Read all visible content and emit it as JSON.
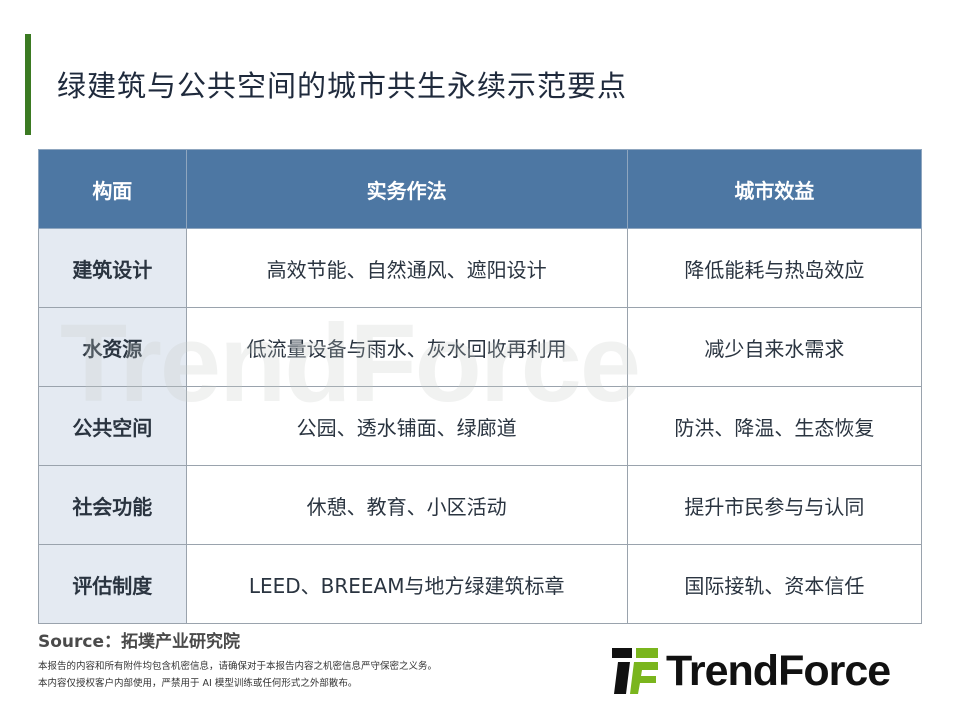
{
  "title": "绿建筑与公共空间的城市共生永续示范要点",
  "colors": {
    "accent": "#3b7a22",
    "header_bg": "#4d77a3",
    "first_col_bg": "#dfe6f0",
    "logo_green": "#7ab51d"
  },
  "table": {
    "headers": [
      "构面",
      "实务作法",
      "城市效益"
    ],
    "rows": [
      [
        "建筑设计",
        "高效节能、自然通风、遮阳设计",
        "降低能耗与热岛效应"
      ],
      [
        "水资源",
        "低流量设备与雨水、灰水回收再利用",
        "减少自来水需求"
      ],
      [
        "公共空间",
        "公园、透水铺面、绿廊道",
        "防洪、降温、生态恢复"
      ],
      [
        "社会功能",
        "休憩、教育、小区活动",
        "提升市民参与与认同"
      ],
      [
        "评估制度",
        "LEED、BREEAM与地方绿建筑标章",
        "国际接轨、资本信任"
      ]
    ]
  },
  "source": "Source：拓墣产业研究院",
  "disclaimer": [
    "本报告的内容和所有附件均包含机密信息，请确保对于本报告内容之机密信息严守保密之义务。",
    "本内容仅授权客户内部使用，严禁用于 AI 模型训练或任何形式之外部散布。"
  ],
  "logo": {
    "text": "TrendForce"
  },
  "watermark": "TrendForce"
}
